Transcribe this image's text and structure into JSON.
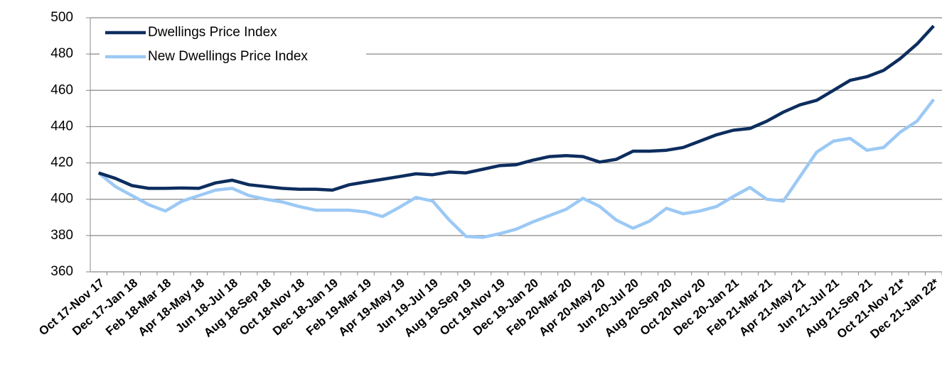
{
  "chart_data": {
    "type": "line",
    "categories": [
      "Oct 17-Nov 17",
      null,
      "Dec 17-Jan 18",
      null,
      "Feb 18-Mar 18",
      null,
      "Apr 18-May 18",
      null,
      "Jun 18-Jul 18",
      null,
      "Aug 18-Sep 18",
      null,
      "Oct 18-Nov 18",
      null,
      "Dec 18-Jan 19",
      null,
      "Feb 19-Mar 19",
      null,
      "Apr 19-May 19",
      null,
      "Jun 19-Jul 19",
      null,
      "Aug 19-Sep 19",
      null,
      "Oct 19-Nov 19",
      null,
      "Dec 19-Jan 20",
      null,
      "Feb 20-Mar 20",
      null,
      "Apr 20-May 20",
      null,
      "Jun 20-Jul 20",
      null,
      "Aug 20-Sep 20",
      null,
      "Oct 20-Nov 20",
      null,
      "Dec 20-Jan 21",
      null,
      "Feb 21-Mar 21",
      null,
      "Apr 21-May 21",
      null,
      "Jun 21-Jul 21",
      null,
      "Aug 21-Sep 21",
      null,
      "Oct 21-Nov 21*",
      null,
      "Dec 21-Jan 22*"
    ],
    "series": [
      {
        "name": "Dwellings Price Index",
        "color": "#0d2d5e",
        "values": [
          414.5,
          411.5,
          407.5,
          406,
          406,
          406.2,
          406,
          409,
          410.5,
          408,
          407,
          406,
          405.5,
          405.5,
          405,
          408,
          409.5,
          411,
          412.5,
          414,
          413.5,
          415,
          414.5,
          416.5,
          418.5,
          419,
          421.5,
          423.5,
          424,
          423.5,
          420.5,
          422,
          426.5,
          426.5,
          427,
          428.5,
          432,
          435.5,
          438,
          439,
          443,
          448,
          452,
          454.5,
          460,
          465.5,
          467.5,
          471,
          477.5,
          485.5,
          495.5
        ]
      },
      {
        "name": "New Dwellings Price Index",
        "color": "#9cc9f5",
        "values": [
          414.5,
          407,
          402,
          397,
          393.5,
          399,
          402,
          405,
          406,
          402,
          400,
          398.5,
          396,
          394,
          394,
          394,
          393,
          390.5,
          395.5,
          401,
          399,
          388.5,
          379.5,
          379,
          381,
          383.5,
          387.5,
          391,
          394.5,
          400.5,
          396,
          388.5,
          384,
          388,
          395,
          392,
          393.5,
          396,
          401.5,
          406.5,
          400,
          399,
          412.5,
          426,
          432,
          433.5,
          427,
          428.5,
          437,
          443,
          455
        ]
      }
    ],
    "ylim": [
      360,
      500
    ],
    "yticks": [
      360,
      380,
      400,
      420,
      440,
      460,
      480,
      500
    ],
    "grid": true,
    "legend": "upper left"
  }
}
